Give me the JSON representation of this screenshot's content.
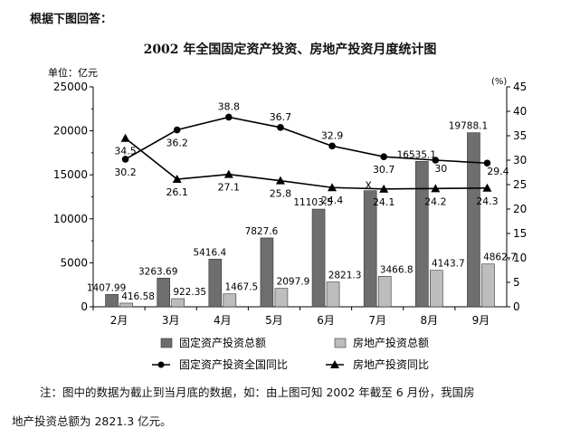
{
  "header": {
    "question": "根据下图回答：",
    "title": "2002 年全国固定资产投资、房地产投资月度统计图"
  },
  "note": {
    "line1": "注：图中的数据为截止到当月底的数据，如：由上图可知 2002 年截至 6 月份，我国房",
    "line2": "地产投资总额为 2821.3 亿元。"
  },
  "chart_data": {
    "type": "bar",
    "title": "2002 年全国固定资产投资、房地产投资月度统计图",
    "left_axis": {
      "label": "单位：亿元",
      "ylim": [
        0,
        25000
      ],
      "ticks": [
        "0",
        "5000",
        "10000",
        "15000",
        "20000",
        "25000"
      ]
    },
    "right_axis": {
      "label": "(%)",
      "ylim": [
        0,
        45
      ],
      "ticks": [
        "0",
        "5",
        "10",
        "15",
        "20",
        "25",
        "30",
        "35",
        "40",
        "45"
      ]
    },
    "categories": [
      "2月",
      "3月",
      "4月",
      "5月",
      "6月",
      "7月",
      "8月",
      "9月"
    ],
    "series": [
      {
        "name": "固定资产投资总额",
        "kind": "bar",
        "axis": "left",
        "color": "#6e6e6e",
        "values": [
          1407.99,
          3263.69,
          5416.4,
          7827.6,
          11103.5,
          13200,
          16535.1,
          19788.1
        ],
        "labels": [
          "1407.99",
          "3263.69",
          "5416.4",
          "7827.6",
          "11103.5",
          "",
          "16535.1",
          "19788.1"
        ]
      },
      {
        "name": "房地产投资总额",
        "kind": "bar",
        "axis": "left",
        "color": "#bdbdbd",
        "values": [
          416.58,
          922.35,
          1467.5,
          2097.9,
          2821.3,
          3466.8,
          4143.7,
          4862.7
        ],
        "labels": [
          "416.58",
          "922.35",
          "1467.5",
          "2097.9",
          "2821.3",
          "3466.8",
          "4143.7",
          "4862.7"
        ]
      },
      {
        "name": "固定资产投资全国同比",
        "kind": "line",
        "marker": "circle",
        "axis": "right",
        "values": [
          30.2,
          36.2,
          38.8,
          36.7,
          32.9,
          30.7,
          30,
          29.4
        ],
        "labels": [
          "30.2",
          "36.2",
          "38.8",
          "36.7",
          "32.9",
          "30.7",
          "30",
          "29.4"
        ]
      },
      {
        "name": "房地产投资同比",
        "kind": "line",
        "marker": "triangle",
        "axis": "right",
        "values": [
          34.5,
          26.1,
          27.1,
          25.8,
          24.4,
          24.1,
          24.2,
          24.3
        ],
        "labels": [
          "34.5",
          "26.1",
          "27.1",
          "25.8",
          "24.4",
          "24.1",
          "24.2",
          "24.3"
        ]
      }
    ],
    "annotations": [
      {
        "text": "X",
        "category": "7月"
      }
    ],
    "legend": {
      "placement": "bottom",
      "items": [
        "固定资产投资总额",
        "房地产投资总额",
        "固定资产投资全国同比",
        "房地产投资同比"
      ]
    },
    "grid": false
  }
}
